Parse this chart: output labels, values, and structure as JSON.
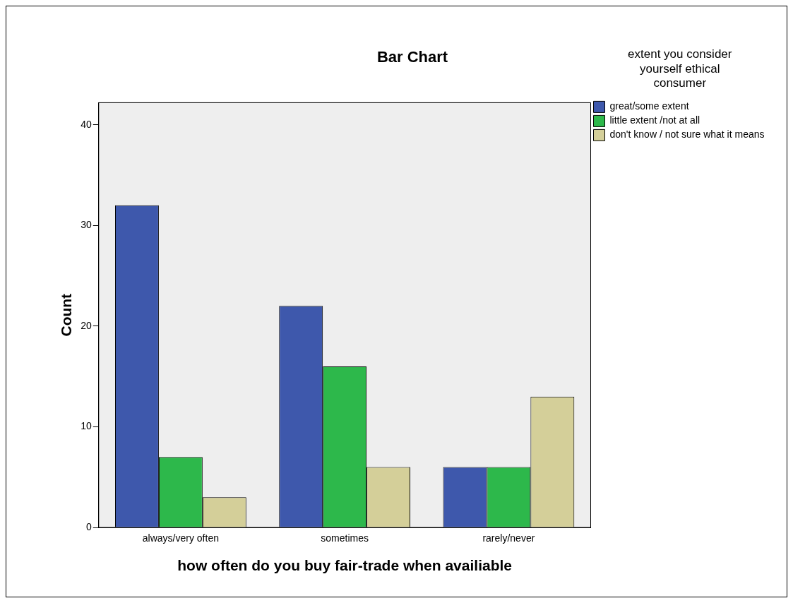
{
  "chart_data": {
    "type": "bar",
    "title": "Bar Chart",
    "xlabel": "how often do you buy fair-trade when availiable",
    "ylabel": "Count",
    "legend_title": "extent you consider yourself ethical consumer",
    "categories": [
      "always/very often",
      "sometimes",
      "rarely/never"
    ],
    "series": [
      {
        "name": "great/some extent",
        "color": "#3e58ac",
        "values": [
          32,
          22,
          6
        ]
      },
      {
        "name": "little extent /not at all",
        "color": "#2db84b",
        "values": [
          7,
          16,
          6
        ]
      },
      {
        "name": "don't know / not sure what it means",
        "color": "#d4cf99",
        "values": [
          3,
          6,
          13
        ]
      }
    ],
    "ylim": [
      0,
      42.2
    ],
    "yticks": [
      0,
      10,
      20,
      30,
      40
    ],
    "grid": false,
    "legend": "right"
  }
}
